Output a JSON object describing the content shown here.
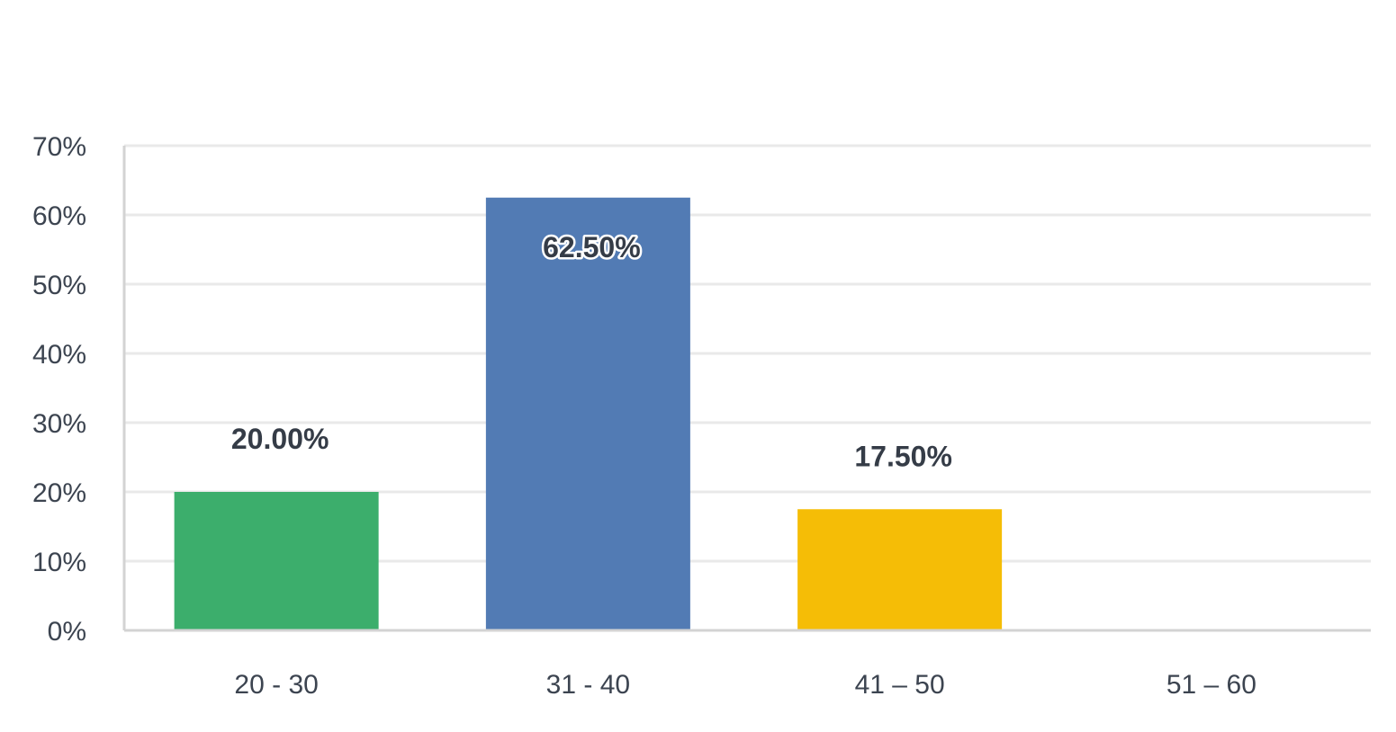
{
  "chart_data": {
    "type": "bar",
    "categories": [
      "20 - 30",
      "31 - 40",
      "41 – 50",
      "51 – 60"
    ],
    "values": [
      20.0,
      62.5,
      17.5,
      0
    ],
    "value_labels": [
      "20.00%",
      "62.50%",
      "17.50%",
      ""
    ],
    "colors": [
      "#3cae6c",
      "#527bb4",
      "#f5bd06",
      "#cccccc"
    ],
    "title": "",
    "xlabel": "",
    "ylabel": "",
    "ylim": [
      0,
      70
    ],
    "y_ticks": [
      0,
      10,
      20,
      30,
      40,
      50,
      60,
      70
    ],
    "y_tick_labels": [
      "0%",
      "10%",
      "20%",
      "30%",
      "40%",
      "50%",
      "60%",
      "70%"
    ],
    "grid": true,
    "legend": "none"
  }
}
